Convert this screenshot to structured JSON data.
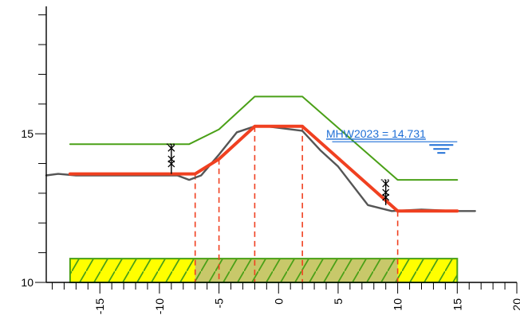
{
  "chart_data": {
    "type": "line",
    "title": "",
    "xlabel": "",
    "ylabel": "",
    "xlim": [
      -19.5,
      20
    ],
    "ylim": [
      10,
      19.5
    ],
    "x_major_ticks": [
      -15,
      -10,
      -5,
      0,
      5,
      10,
      15,
      20
    ],
    "x_tick_labels": [
      "-15",
      "-10",
      "-5",
      "0",
      "5",
      "10",
      "15",
      "20"
    ],
    "x_minor_step": 1,
    "y_major_ticks": [
      10,
      15
    ],
    "y_tick_labels": [
      "10",
      "15"
    ],
    "y_minor_step": 1,
    "grid": false,
    "series": [
      {
        "role": "terrain",
        "color": "#555555",
        "x": [
          -19.5,
          -18.5,
          -17,
          -12,
          -8.5,
          -7.5,
          -6.5,
          -5,
          -3.5,
          -2,
          -1,
          2,
          3.5,
          5,
          7.5,
          9.5,
          12,
          15,
          16.5
        ],
        "y": [
          13.6,
          13.65,
          13.6,
          13.6,
          13.6,
          13.45,
          13.6,
          14.3,
          15.05,
          15.25,
          15.25,
          15.1,
          14.45,
          13.9,
          12.6,
          12.4,
          12.45,
          12.4,
          12.4
        ]
      },
      {
        "role": "design-profile",
        "color": "#f04020",
        "x": [
          -17.5,
          -7,
          -5,
          -2,
          2,
          10,
          15
        ],
        "y": [
          13.65,
          13.65,
          14.15,
          15.25,
          15.25,
          12.4,
          12.4
        ]
      },
      {
        "role": "upper-profile",
        "color": "#4aa017",
        "x": [
          -17.5,
          -7.5,
          -5,
          -2,
          2,
          10,
          15
        ],
        "y": [
          14.65,
          14.65,
          15.15,
          16.25,
          16.25,
          13.45,
          13.45
        ]
      }
    ],
    "vertical_markers": [
      {
        "x": -7,
        "y_top": 13.65,
        "y_bottom": 10
      },
      {
        "x": -5,
        "y_top": 14.15,
        "y_bottom": 10
      },
      {
        "x": -2,
        "y_top": 15.25,
        "y_bottom": 10
      },
      {
        "x": 2,
        "y_top": 15.25,
        "y_bottom": 10
      },
      {
        "x": 10,
        "y_top": 12.4,
        "y_bottom": 10
      }
    ],
    "dimension_marks": [
      {
        "x": -9,
        "y_from": 13.65,
        "y_to": 14.65
      },
      {
        "x": 9,
        "y_from": 12.6,
        "y_to": 13.45
      }
    ],
    "annotation": {
      "text": "MHW2023 = 14.731",
      "value": 14.731,
      "x": 5,
      "x_end": 15,
      "color": "#1f6fd6"
    },
    "base_band": {
      "x_from": -17.5,
      "x_to": 15,
      "y_from": 10,
      "y_to": 10.8,
      "fill": "#ffff00",
      "hatch": "#4aa017",
      "inner_x_from": -7,
      "inner_x_to": 10,
      "inner_fill": "#c8c86a"
    },
    "colors": {
      "axis": "#000000",
      "markers": "#f04020"
    }
  }
}
